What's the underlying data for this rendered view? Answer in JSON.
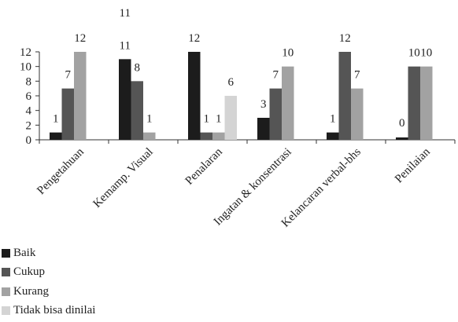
{
  "chart_data": {
    "type": "bar",
    "categories": [
      "Pengetahuan",
      "Kemamp. Visual",
      "Penalaran",
      "Ingatan & konsentrasi",
      "Kelancaran verbal-bhs",
      "Penilaian"
    ],
    "series": [
      {
        "name": "Baik",
        "color": "#1c1c1c",
        "values": [
          1,
          11,
          12,
          3,
          1,
          0
        ]
      },
      {
        "name": "Cukup",
        "color": "#555555",
        "values": [
          7,
          8,
          1,
          7,
          12,
          10
        ]
      },
      {
        "name": "Kurang",
        "color": "#a2a2a2",
        "values": [
          12,
          1,
          1,
          10,
          7,
          10
        ]
      },
      {
        "name": "Tidak bisa dinilai",
        "color": "#d4d4d4",
        "values": [
          null,
          null,
          6,
          null,
          null,
          null
        ]
      }
    ],
    "data_labels": [
      [
        "1",
        "7",
        "12",
        null
      ],
      [
        "11",
        "8",
        "1",
        null
      ],
      [
        "12",
        "1",
        "1",
        "6"
      ],
      [
        "3",
        "7",
        "10",
        null
      ],
      [
        "1",
        "12",
        "7",
        null
      ],
      [
        "0",
        "10",
        "10",
        null
      ]
    ],
    "stray_labels": [
      {
        "text": "11",
        "category": "Kemamp. Visual"
      }
    ],
    "ylim": [
      0,
      12
    ],
    "yticks": [
      "0",
      "2",
      "4",
      "6",
      "8",
      "10",
      "12"
    ],
    "legend_position": "bottom-left",
    "xlabel": "",
    "ylabel": "",
    "title": ""
  }
}
